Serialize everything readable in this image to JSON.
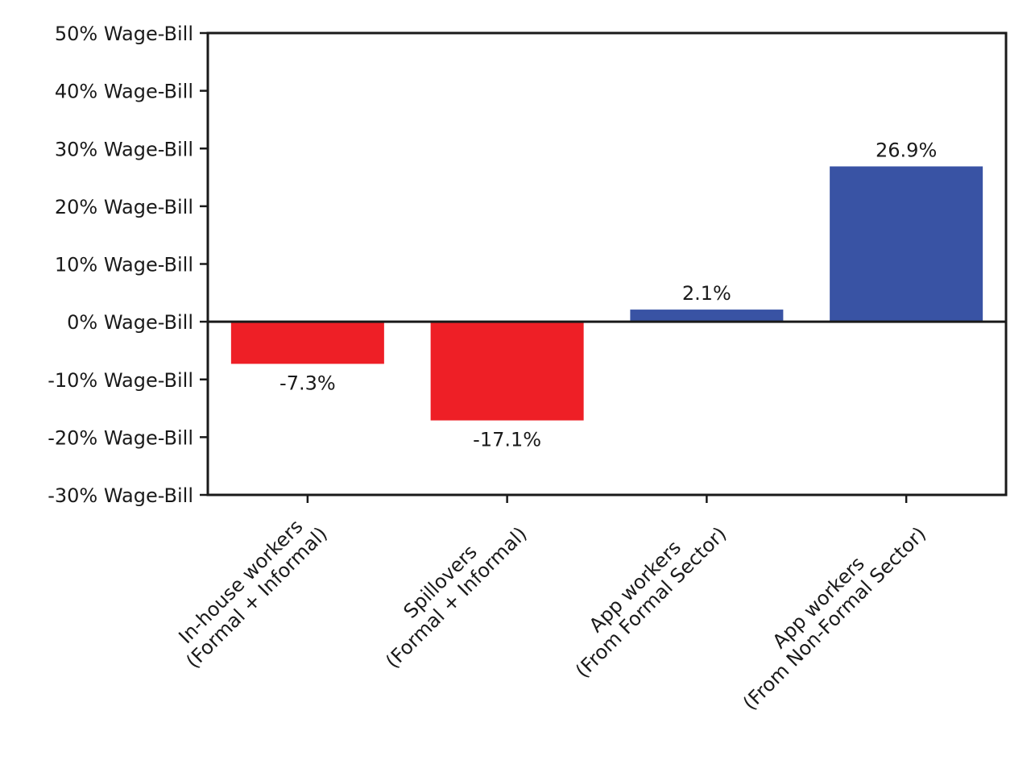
{
  "chart_data": {
    "type": "bar",
    "title": "",
    "xlabel": "",
    "ylabel": "",
    "categories": [
      [
        "In-house workers",
        "(Formal + Informal)"
      ],
      [
        "Spillovers",
        "(Formal + Informal)"
      ],
      [
        "App workers",
        "(From Formal Sector)"
      ],
      [
        "App workers",
        "(From Non-Formal Sector)"
      ]
    ],
    "values": [
      -7.3,
      -17.1,
      2.1,
      26.9
    ],
    "value_labels": [
      "-7.3%",
      "-17.1%",
      "2.1%",
      "26.9%"
    ],
    "bar_colors": [
      "#ee1f26",
      "#ee1f26",
      "#3953a4",
      "#3953a4"
    ],
    "ylim": [
      -30,
      50
    ],
    "yticks": [
      50,
      40,
      30,
      20,
      10,
      0,
      -10,
      -20,
      -30
    ],
    "ytick_labels": [
      "50% Wage-Bill",
      "40% Wage-Bill",
      "30% Wage-Bill",
      "20% Wage-Bill",
      "10% Wage-Bill",
      "0% Wage-Bill",
      "-10% Wage-Bill",
      "-20% Wage-Bill",
      "-30% Wage-Bill"
    ],
    "zero_line": true,
    "grid": false,
    "legend": "none"
  }
}
